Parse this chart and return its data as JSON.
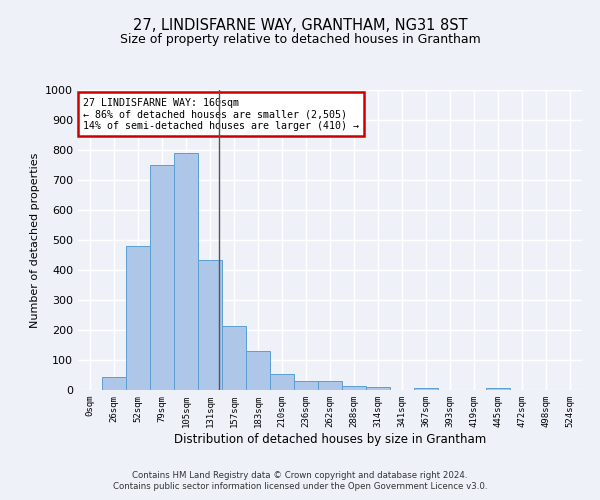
{
  "title": "27, LINDISFARNE WAY, GRANTHAM, NG31 8ST",
  "subtitle": "Size of property relative to detached houses in Grantham",
  "xlabel": "Distribution of detached houses by size in Grantham",
  "ylabel": "Number of detached properties",
  "categories": [
    "0sqm",
    "26sqm",
    "52sqm",
    "79sqm",
    "105sqm",
    "131sqm",
    "157sqm",
    "183sqm",
    "210sqm",
    "236sqm",
    "262sqm",
    "288sqm",
    "314sqm",
    "341sqm",
    "367sqm",
    "393sqm",
    "419sqm",
    "445sqm",
    "472sqm",
    "498sqm",
    "524sqm"
  ],
  "bar_heights": [
    0,
    42,
    480,
    750,
    790,
    435,
    215,
    130,
    55,
    30,
    30,
    13,
    10,
    0,
    8,
    0,
    0,
    7,
    0,
    0,
    0
  ],
  "bar_color": "#aec6e8",
  "bar_edge_color": "#5a9fd4",
  "property_line_x": 5.38,
  "annotation_text": "27 LINDISFARNE WAY: 160sqm\n← 86% of detached houses are smaller (2,505)\n14% of semi-detached houses are larger (410) →",
  "annotation_box_color": "#ffffff",
  "annotation_box_edge": "#cc0000",
  "ylim": [
    0,
    1000
  ],
  "yticks": [
    0,
    100,
    200,
    300,
    400,
    500,
    600,
    700,
    800,
    900,
    1000
  ],
  "background_color": "#eef2f8",
  "grid_color": "#ffffff",
  "footer1": "Contains HM Land Registry data © Crown copyright and database right 2024.",
  "footer2": "Contains public sector information licensed under the Open Government Licence v3.0."
}
